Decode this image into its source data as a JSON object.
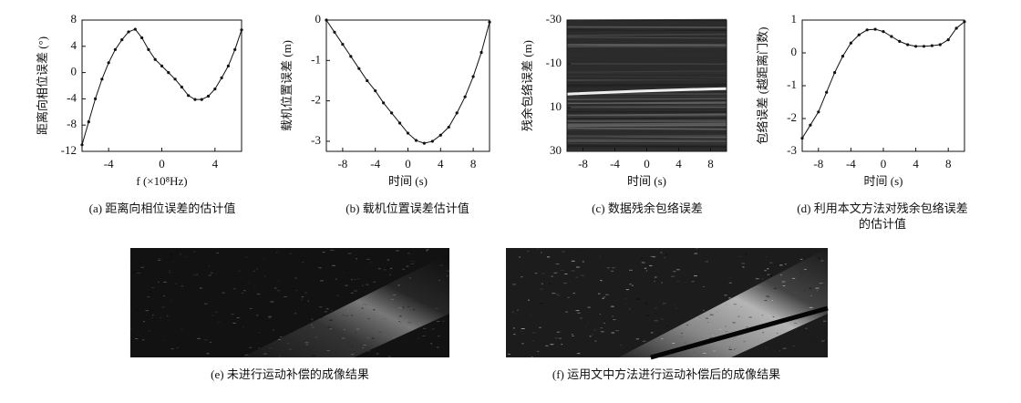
{
  "chart_data": [
    {
      "type": "line",
      "caption": "(a) 距离向相位误差的估计值",
      "xlabel": "f (×10⁸Hz)",
      "ylabel": "距离向相位误差 (°)",
      "xlim": [
        -6,
        6
      ],
      "xticks": [
        -4,
        0,
        4
      ],
      "ylim": [
        -12,
        8
      ],
      "yticks": [
        -12,
        -8,
        -4,
        0,
        4,
        8
      ],
      "color": "#111111",
      "x": [
        -6,
        -5.5,
        -5,
        -4.5,
        -4,
        -3.5,
        -3,
        -2.5,
        -2,
        -1.5,
        -1,
        -0.5,
        0,
        0.5,
        1,
        1.5,
        2,
        2.5,
        3,
        3.5,
        4,
        4.5,
        5,
        5.5,
        6
      ],
      "values": [
        -11,
        -7.5,
        -4,
        -1,
        1.5,
        3.5,
        5,
        6.2,
        6.6,
        5.3,
        3.5,
        2,
        1,
        0,
        -1,
        -2.2,
        -3.5,
        -4.1,
        -4.1,
        -3.6,
        -2.5,
        -0.8,
        1,
        3.5,
        6.5
      ]
    },
    {
      "type": "line",
      "caption": "(b) 载机位置误差估计值",
      "xlabel": "时间 (s)",
      "ylabel": "载机位置误差 (m)",
      "xlim": [
        -10,
        10
      ],
      "xticks": [
        -8,
        -4,
        0,
        4,
        8
      ],
      "ylim": [
        -3.25,
        0
      ],
      "yticks": [
        -3,
        -2,
        -1,
        0
      ],
      "color": "#111111",
      "x": [
        -10,
        -9,
        -8,
        -7,
        -6,
        -5,
        -4,
        -3,
        -2,
        -1,
        0,
        1,
        2,
        3,
        4,
        5,
        6,
        7,
        8,
        9,
        10
      ],
      "values": [
        0,
        -0.3,
        -0.6,
        -0.9,
        -1.2,
        -1.5,
        -1.75,
        -2.05,
        -2.3,
        -2.55,
        -2.8,
        -2.98,
        -3.05,
        -3.0,
        -2.85,
        -2.65,
        -2.3,
        -1.9,
        -1.4,
        -0.8,
        -0.05
      ]
    },
    {
      "type": "image",
      "caption": "(c) 数据残余包络误差",
      "xlabel": "时间 (s)",
      "ylabel": "残余包络误差 (m)",
      "xlim": [
        -10,
        10
      ],
      "xticks": [
        -8,
        -4,
        0,
        4,
        8
      ],
      "ylim": [
        30,
        -30
      ],
      "yticks": [
        -30,
        -10,
        10,
        30
      ]
    },
    {
      "type": "line",
      "caption": "(d) 利用本文方法对残余包络误差的估计值",
      "xlabel": "时间 (s)",
      "ylabel": "包络误差 (越距离门数)",
      "xlim": [
        -10,
        10
      ],
      "xticks": [
        -8,
        -4,
        0,
        4,
        8
      ],
      "ylim": [
        -3,
        1
      ],
      "yticks": [
        -3,
        -2,
        -1,
        0,
        1
      ],
      "color": "#111111",
      "x": [
        -10,
        -9,
        -8,
        -7,
        -6,
        -5,
        -4,
        -3,
        -2,
        -1,
        0,
        1,
        2,
        3,
        4,
        5,
        6,
        7,
        8,
        9,
        10
      ],
      "values": [
        -2.6,
        -2.2,
        -1.8,
        -1.2,
        -0.6,
        -0.1,
        0.3,
        0.55,
        0.7,
        0.72,
        0.65,
        0.5,
        0.35,
        0.25,
        0.2,
        0.2,
        0.22,
        0.25,
        0.4,
        0.75,
        0.95
      ]
    },
    {
      "type": "image",
      "caption": "(e) 未进行运动补偿的成像结果"
    },
    {
      "type": "image",
      "caption": "(f) 运用文中方法进行运动补偿后的成像结果"
    }
  ]
}
